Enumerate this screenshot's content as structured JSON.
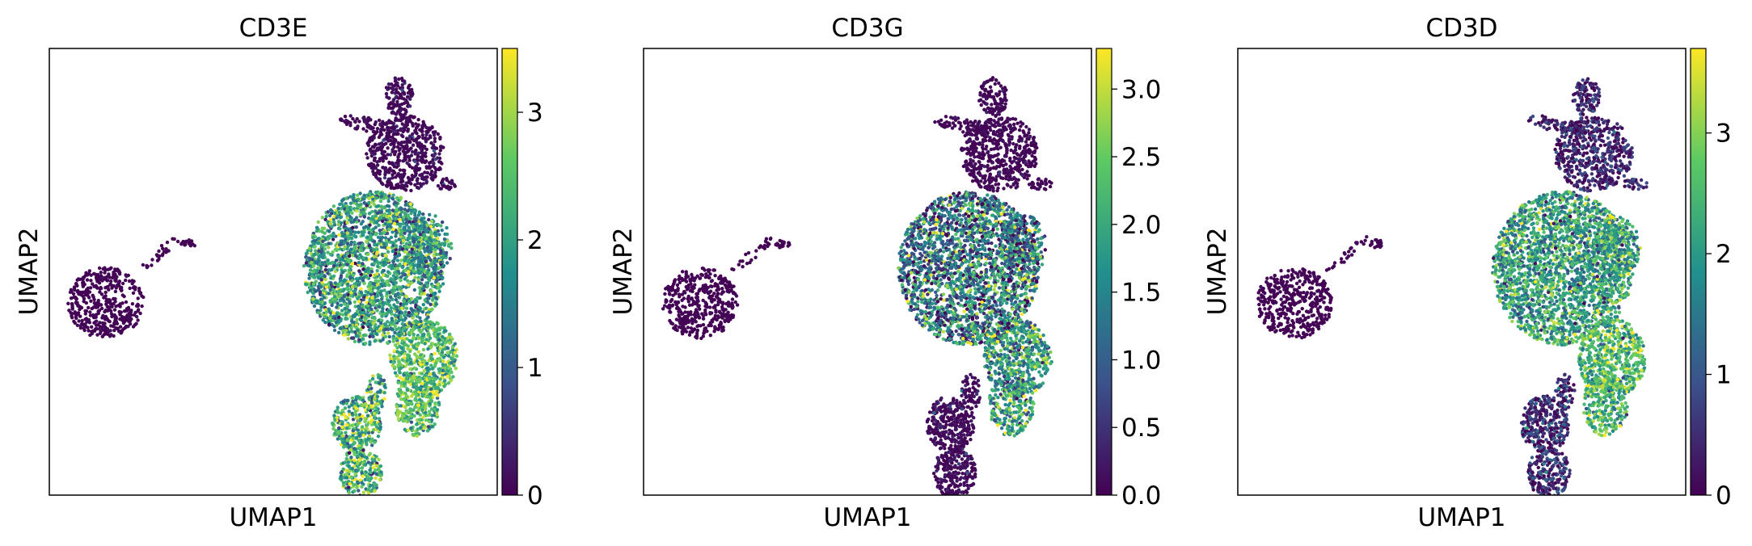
{
  "colormap": "viridis",
  "colormap_stops": [
    "#440154",
    "#3b528b",
    "#21908d",
    "#5dc963",
    "#fde725"
  ],
  "frame_color": "#000000",
  "chart_data": [
    {
      "type": "scatter",
      "title": "CD3E",
      "xlabel": "UMAP1",
      "ylabel": "UMAP2",
      "x_ticks_shown": false,
      "y_ticks_shown": false,
      "colorbar": {
        "vmin": 0,
        "vmax": 3.5,
        "ticks": [
          0,
          1,
          2,
          3
        ],
        "tick_labels": [
          "0",
          "1",
          "2",
          "3"
        ]
      },
      "clusters": [
        {
          "name": "left-blob",
          "expression_level": 0.02,
          "spread": 0.02
        },
        {
          "name": "top-right-arm",
          "expression_level": 0.08,
          "spread": 0.08
        },
        {
          "name": "central-mass",
          "expression_level": 0.55,
          "spread": 0.22
        },
        {
          "name": "lower-right-lobe",
          "expression_level": 0.7,
          "spread": 0.18
        },
        {
          "name": "bottom-tail",
          "expression_level": 0.65,
          "spread": 0.22
        }
      ]
    },
    {
      "type": "scatter",
      "title": "CD3G",
      "xlabel": "UMAP1",
      "ylabel": "UMAP2",
      "x_ticks_shown": false,
      "y_ticks_shown": false,
      "colorbar": {
        "vmin": 0,
        "vmax": 3.3,
        "ticks": [
          0,
          0.5,
          1,
          1.5,
          2,
          2.5,
          3
        ],
        "tick_labels": [
          "0.0",
          "0.5",
          "1.0",
          "1.5",
          "2.0",
          "2.5",
          "3.0"
        ]
      },
      "clusters": [
        {
          "name": "left-blob",
          "expression_level": 0.02,
          "spread": 0.02
        },
        {
          "name": "top-right-arm",
          "expression_level": 0.05,
          "spread": 0.06
        },
        {
          "name": "central-mass",
          "expression_level": 0.4,
          "spread": 0.28
        },
        {
          "name": "lower-right-lobe",
          "expression_level": 0.55,
          "spread": 0.22
        },
        {
          "name": "bottom-tail",
          "expression_level": 0.08,
          "spread": 0.12
        }
      ]
    },
    {
      "type": "scatter",
      "title": "CD3D",
      "xlabel": "UMAP1",
      "ylabel": "UMAP2",
      "x_ticks_shown": false,
      "y_ticks_shown": false,
      "colorbar": {
        "vmin": 0,
        "vmax": 3.7,
        "ticks": [
          0,
          1,
          2,
          3
        ],
        "tick_labels": [
          "0",
          "1",
          "2",
          "3"
        ]
      },
      "clusters": [
        {
          "name": "left-blob",
          "expression_level": 0.02,
          "spread": 0.02
        },
        {
          "name": "top-right-arm",
          "expression_level": 0.1,
          "spread": 0.12
        },
        {
          "name": "central-mass",
          "expression_level": 0.55,
          "spread": 0.2
        },
        {
          "name": "lower-right-lobe",
          "expression_level": 0.68,
          "spread": 0.18
        },
        {
          "name": "bottom-tail",
          "expression_level": 0.12,
          "spread": 0.15
        }
      ]
    }
  ]
}
